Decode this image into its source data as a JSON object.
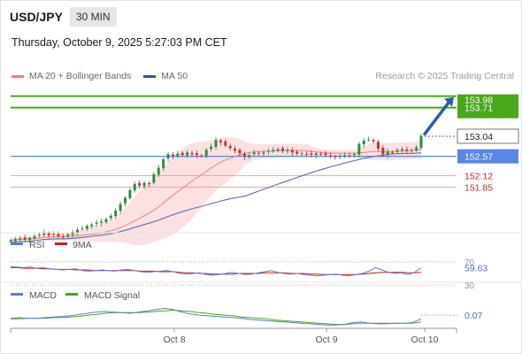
{
  "header": {
    "symbol": "USD/JPY",
    "timeframe": "30 MIN",
    "datetime": "Thursday, October 9, 2025 5:27:03 PM CET"
  },
  "legend": {
    "items": [
      {
        "label": "MA 20 + Bollinger Bands",
        "color": "#f08080"
      },
      {
        "label": "MA 50",
        "color": "#2c5aa0"
      }
    ],
    "credit": "Research © 2025 Trading Central"
  },
  "colors": {
    "bull": "#2e8b3a",
    "bear": "#c03030",
    "band_fill": "#fadcdc",
    "ma20": "#f08080",
    "ma50": "#5b6fb3",
    "target_line": "#4aa61a",
    "pivot_line": "#5b86e5",
    "support_line": "#f0a0a0",
    "arrow": "#2c5fa8",
    "rsi": "#5b7fd0",
    "rsi_ma": "#c02020",
    "macd": "#5b7fd0",
    "macd_signal": "#4aa61a"
  },
  "chart_data": [
    {
      "type": "candlestick",
      "title": "USD/JPY",
      "x_ticks": [
        "Oct 8",
        "Oct 9",
        "Oct 10"
      ],
      "ylim": [
        150.8,
        154.2
      ],
      "grid": false,
      "legend_position": "top-left",
      "series": [
        {
          "name": "MA 20 + Bollinger Bands",
          "kind": "band-with-midline"
        },
        {
          "name": "MA 50",
          "kind": "line"
        }
      ],
      "ohlc_close": [
        150.6,
        150.63,
        150.65,
        150.62,
        150.66,
        150.7,
        150.74,
        150.78,
        150.72,
        150.76,
        150.7,
        150.68,
        150.74,
        150.8,
        150.85,
        150.88,
        150.94,
        150.97,
        151.02,
        151.04,
        151.1,
        151.18,
        151.3,
        151.45,
        151.6,
        151.78,
        151.92,
        151.88,
        151.95,
        151.93,
        152.15,
        152.3,
        152.5,
        152.62,
        152.58,
        152.63,
        152.6,
        152.66,
        152.62,
        152.6,
        152.58,
        152.72,
        152.8,
        152.95,
        152.9,
        152.82,
        152.76,
        152.7,
        152.64,
        152.56,
        152.6,
        152.66,
        152.64,
        152.66,
        152.7,
        152.72,
        152.74,
        152.7,
        152.72,
        152.66,
        152.63,
        152.64,
        152.62,
        152.61,
        152.64,
        152.62,
        152.6,
        152.58,
        152.56,
        152.58,
        152.6,
        152.58,
        152.62,
        152.86,
        152.94,
        152.96,
        152.92,
        152.75,
        152.62,
        152.68,
        152.66,
        152.72,
        152.74,
        152.7,
        152.72,
        152.78,
        153.05
      ],
      "levels": [
        {
          "label": "153.98",
          "value": 153.98,
          "style": "green"
        },
        {
          "label": "153.71",
          "value": 153.71,
          "style": "green"
        },
        {
          "label": "153.04",
          "value": 153.04,
          "style": "current"
        },
        {
          "label": "152.57",
          "value": 152.57,
          "style": "pivot"
        },
        {
          "label": "152.12",
          "value": 152.12,
          "style": "red"
        },
        {
          "label": "151.85",
          "value": 151.85,
          "style": "red"
        }
      ]
    },
    {
      "type": "line",
      "series": [
        {
          "name": "RSI",
          "values": [
            62,
            61,
            60,
            61,
            59,
            60,
            58,
            57,
            56,
            57,
            58,
            55,
            54,
            55,
            56,
            55,
            54,
            56,
            57,
            55,
            53,
            52,
            53,
            54,
            55,
            53,
            50,
            49,
            50,
            51,
            48,
            47,
            48,
            50,
            52,
            50,
            48,
            49,
            51,
            53,
            55,
            52,
            50,
            49,
            50,
            48,
            47,
            46,
            47,
            48,
            49,
            47,
            46,
            48,
            50,
            54,
            60,
            56,
            52,
            50,
            51,
            48,
            52,
            59.63
          ]
        },
        {
          "name": "9MA",
          "values": [
            60,
            60,
            59,
            59,
            59,
            58,
            58,
            57,
            57,
            57,
            56,
            56,
            56,
            55,
            55,
            55,
            55,
            55,
            55,
            55,
            54,
            54,
            54,
            53,
            53,
            53,
            52,
            51,
            51,
            50,
            50,
            49,
            49,
            49,
            49,
            50,
            50,
            50,
            50,
            51,
            51,
            51,
            51,
            50,
            50,
            50,
            49,
            49,
            48,
            48,
            48,
            48,
            48,
            48,
            49,
            50,
            51,
            52,
            52,
            52,
            52,
            51,
            51,
            52
          ]
        }
      ],
      "levels": [
        {
          "label": "70",
          "value": 70
        },
        {
          "label": "59.63",
          "value": 59.63
        },
        {
          "label": "30",
          "value": 30
        }
      ]
    },
    {
      "type": "line",
      "series": [
        {
          "name": "MACD",
          "values": [
            0.02,
            0.03,
            0.02,
            0.02,
            0.03,
            0.04,
            0.05,
            0.06,
            0.08,
            0.1,
            0.12,
            0.13,
            0.12,
            0.11,
            0.1,
            0.12,
            0.14,
            0.16,
            0.18,
            0.16,
            0.12,
            0.09,
            0.07,
            0.06,
            0.05,
            0.04,
            0.03,
            0.02,
            0.0,
            -0.01,
            -0.02,
            -0.03,
            -0.04,
            -0.05,
            -0.06,
            -0.07,
            -0.08,
            -0.09,
            -0.09,
            -0.08,
            -0.05,
            -0.04,
            -0.06,
            -0.07,
            -0.07,
            -0.06,
            -0.06,
            -0.05,
            0.01
          ]
        },
        {
          "name": "MACD Signal",
          "values": [
            0.01,
            0.01,
            0.02,
            0.02,
            0.02,
            0.03,
            0.03,
            0.04,
            0.05,
            0.07,
            0.08,
            0.1,
            0.11,
            0.11,
            0.11,
            0.11,
            0.12,
            0.13,
            0.14,
            0.15,
            0.14,
            0.13,
            0.11,
            0.1,
            0.08,
            0.07,
            0.06,
            0.04,
            0.03,
            0.02,
            0.01,
            -0.01,
            -0.02,
            -0.03,
            -0.04,
            -0.05,
            -0.06,
            -0.07,
            -0.08,
            -0.08,
            -0.07,
            -0.06,
            -0.06,
            -0.06,
            -0.06,
            -0.06,
            -0.06,
            -0.06,
            -0.04
          ]
        }
      ],
      "levels": [
        {
          "label": "0.07",
          "value": 0.07
        }
      ]
    }
  ],
  "panels": {
    "rsi": {
      "legend": [
        {
          "label": "RSI"
        },
        {
          "label": "9MA"
        }
      ]
    },
    "macd": {
      "legend": [
        {
          "label": "MACD"
        },
        {
          "label": "MACD Signal"
        }
      ]
    }
  }
}
